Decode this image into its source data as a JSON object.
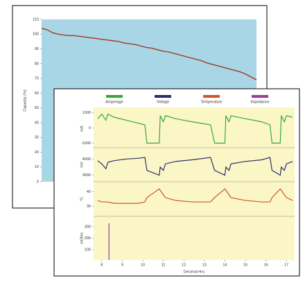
{
  "chart_data": [
    {
      "type": "line",
      "ylabel": "Capacity (%)",
      "ylim": [
        0,
        110
      ],
      "yticks": [
        0,
        10,
        20,
        30,
        40,
        50,
        60,
        70,
        80,
        90,
        100,
        110
      ],
      "color": "#a0442a",
      "values": [
        104,
        103,
        101,
        100,
        99.5,
        99,
        99,
        98.5,
        98,
        97.5,
        97,
        96.5,
        96,
        95.5,
        95,
        94,
        93.5,
        93,
        92,
        91,
        90.5,
        89.5,
        88.5,
        88,
        87,
        86,
        85,
        84,
        83,
        82,
        80.5,
        79.5,
        78.5,
        77.5,
        76.5,
        75.5,
        74.5,
        73,
        71,
        69
      ]
    },
    {
      "type": "line",
      "xlabel": "Decimal Hrs",
      "xlim": [
        7.6,
        17.4
      ],
      "xticks": [
        8,
        9,
        10,
        11,
        12,
        13,
        14,
        15,
        16,
        17
      ],
      "x": [
        7.8,
        8.0,
        8.2,
        8.3,
        8.6,
        9.2,
        9.8,
        10.1,
        10.2,
        10.8,
        10.85,
        11.0,
        11.1,
        11.6,
        12.4,
        13.3,
        13.5,
        14.0,
        14.05,
        14.2,
        14.3,
        15.0,
        15.8,
        16.2,
        16.3,
        16.7,
        16.75,
        16.9,
        17.0,
        17.3
      ],
      "series": [
        {
          "name": "Amperage",
          "color": "#3aa63a",
          "ylabel": "mA",
          "ylim": [
            -1300,
            1200
          ],
          "yticks": [
            1000,
            0,
            -1000
          ],
          "values": [
            600,
            900,
            500,
            900,
            700,
            500,
            300,
            200,
            -1000,
            -1000,
            800,
            400,
            800,
            600,
            400,
            200,
            -1000,
            -1000,
            800,
            400,
            800,
            600,
            400,
            200,
            -1000,
            -1000,
            800,
            400,
            800,
            700
          ]
        },
        {
          "name": "Voltage",
          "color": "#2b2f6e",
          "ylabel": "mV",
          "ylim": [
            2600,
            4700
          ],
          "yticks": [
            4000,
            3000
          ],
          "values": [
            3900,
            3700,
            3400,
            3800,
            3900,
            4000,
            4050,
            4100,
            3300,
            3000,
            3500,
            3300,
            3700,
            3850,
            3950,
            4100,
            3300,
            3000,
            3500,
            3300,
            3700,
            3850,
            3950,
            4100,
            3300,
            3000,
            3500,
            3300,
            3700,
            3850
          ]
        },
        {
          "name": "Temperature",
          "color": "#d0552a",
          "ylabel": "°C",
          "ylim": [
            23,
            47
          ],
          "yticks": [
            40,
            30
          ],
          "values": [
            34,
            33,
            33,
            33,
            32,
            32,
            32,
            33,
            36,
            42,
            41,
            38,
            36,
            34,
            33,
            33,
            36,
            42,
            41,
            38,
            36,
            34,
            33,
            33,
            36,
            42,
            41,
            38,
            36,
            34
          ]
        },
        {
          "name": "Impedance",
          "color": "#9b3b9b",
          "ylabel": "mOhm",
          "ylim": [
            10,
            390
          ],
          "yticks": [
            300,
            200,
            100
          ],
          "x": [
            8.35
          ],
          "values": [
            330
          ]
        }
      ]
    }
  ]
}
